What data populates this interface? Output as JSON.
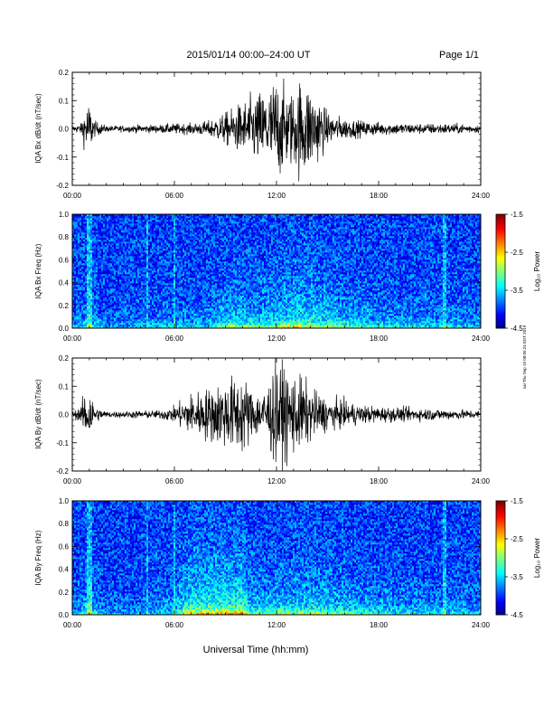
{
  "header": {
    "title": "2015/01/14  00:00–24:00 UT",
    "page": "Page 1/1"
  },
  "xlabel": "Universal Time (hh:mm)",
  "stamp": "sai Thu Sep 19 08:05:24 EDT 2019",
  "chart_data": [
    {
      "type": "line",
      "ylabel": "IQA Bx dB/dt (nT/sec)",
      "xlim": [
        0,
        24
      ],
      "ylim": [
        -0.2,
        0.2
      ],
      "xticks": [
        "00:00",
        "06:00",
        "12:00",
        "18:00",
        "24:00"
      ],
      "yticks": [
        "-0.2",
        "-0.1",
        "0.0",
        "0.1",
        "0.2"
      ],
      "envelope": {
        "x": [
          0,
          0.5,
          0.8,
          1.0,
          1.3,
          2,
          3,
          4,
          5,
          6,
          7,
          8,
          9,
          9.5,
          10,
          10.5,
          11,
          11.5,
          12,
          12.5,
          13,
          13.5,
          14,
          14.5,
          15,
          16,
          17,
          18,
          20,
          22,
          24
        ],
        "amplitude": [
          0.01,
          0.02,
          0.09,
          0.1,
          0.03,
          0.012,
          0.012,
          0.015,
          0.015,
          0.02,
          0.02,
          0.03,
          0.06,
          0.08,
          0.1,
          0.12,
          0.14,
          0.15,
          0.2,
          0.15,
          0.14,
          0.2,
          0.16,
          0.12,
          0.06,
          0.04,
          0.03,
          0.025,
          0.02,
          0.02,
          0.015
        ]
      }
    },
    {
      "type": "heatmap",
      "ylabel": "IQA Bx Freq (Hz)",
      "xlim": [
        0,
        24
      ],
      "ylim": [
        0,
        1.0
      ],
      "xticks": [
        "00:00",
        "06:00",
        "12:00",
        "18:00",
        "24:00"
      ],
      "yticks": [
        "0.0",
        "0.2",
        "0.4",
        "0.6",
        "0.8",
        "1.0"
      ],
      "colorbar": {
        "label": "Log₁₀ Power",
        "ticks": [
          "-1.5",
          "-2.5",
          "-3.5",
          "-4.5"
        ],
        "range": [
          -4.5,
          -1.5
        ]
      },
      "activity": {
        "x": [
          0,
          1,
          2,
          4,
          6,
          8,
          9.5,
          10.5,
          12,
          13,
          14,
          15,
          16,
          18,
          20,
          24
        ],
        "level": [
          0.15,
          0.4,
          0.15,
          0.2,
          0.25,
          0.3,
          0.55,
          0.45,
          0.5,
          0.65,
          0.6,
          0.55,
          0.45,
          0.35,
          0.3,
          0.25
        ]
      }
    },
    {
      "type": "line",
      "ylabel": "IQA By dB/dt (nT/sec)",
      "xlim": [
        0,
        24
      ],
      "ylim": [
        -0.2,
        0.2
      ],
      "xticks": [
        "00:00",
        "06:00",
        "12:00",
        "18:00",
        "24:00"
      ],
      "yticks": [
        "-0.2",
        "-0.1",
        "0.0",
        "0.1",
        "0.2"
      ],
      "envelope": {
        "x": [
          0,
          0.5,
          0.8,
          1.0,
          1.3,
          2,
          3,
          4,
          5,
          6,
          6.5,
          7,
          8,
          9,
          9.5,
          10,
          10.5,
          11,
          11.5,
          12,
          12.5,
          13,
          13.5,
          14,
          15,
          16,
          17,
          18,
          20,
          22,
          24
        ],
        "amplitude": [
          0.01,
          0.03,
          0.1,
          0.12,
          0.03,
          0.012,
          0.012,
          0.015,
          0.015,
          0.03,
          0.06,
          0.08,
          0.1,
          0.13,
          0.14,
          0.15,
          0.1,
          0.08,
          0.12,
          0.2,
          0.18,
          0.15,
          0.14,
          0.1,
          0.06,
          0.05,
          0.035,
          0.03,
          0.025,
          0.02,
          0.015
        ]
      }
    },
    {
      "type": "heatmap",
      "ylabel": "IQA By Freq (Hz)",
      "xlim": [
        0,
        24
      ],
      "ylim": [
        0,
        1.0
      ],
      "xticks": [
        "00:00",
        "06:00",
        "12:00",
        "18:00",
        "24:00"
      ],
      "yticks": [
        "0.0",
        "0.2",
        "0.4",
        "0.6",
        "0.8",
        "1.0"
      ],
      "colorbar": {
        "label": "Log₁₀ Power",
        "ticks": [
          "-1.5",
          "-2.5",
          "-3.5",
          "-4.5"
        ],
        "range": [
          -4.5,
          -1.5
        ]
      },
      "activity": {
        "x": [
          0,
          1,
          2,
          4,
          6,
          6.5,
          7,
          8,
          9,
          10,
          10.5,
          11,
          12,
          13,
          14,
          15,
          16,
          18,
          20,
          24
        ],
        "level": [
          0.15,
          0.45,
          0.15,
          0.2,
          0.3,
          0.6,
          0.7,
          0.75,
          0.75,
          0.8,
          0.45,
          0.45,
          0.5,
          0.5,
          0.55,
          0.5,
          0.45,
          0.35,
          0.3,
          0.25
        ]
      }
    }
  ]
}
